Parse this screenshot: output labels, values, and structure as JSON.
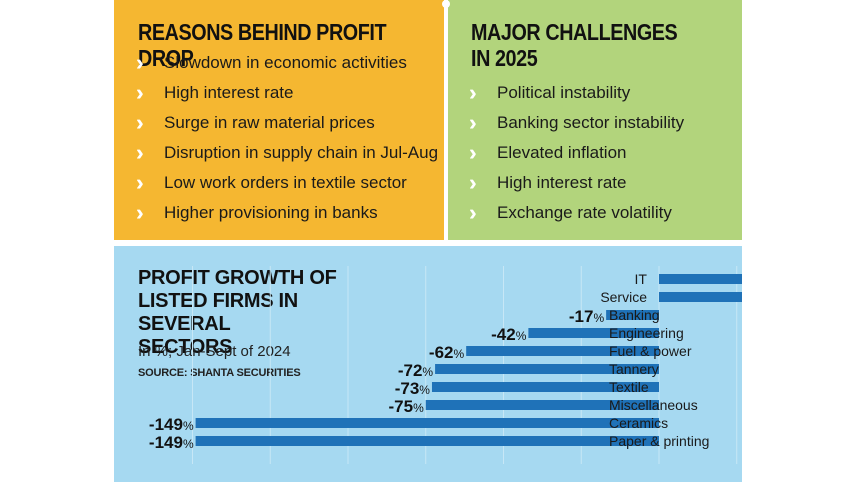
{
  "reasons": {
    "title": "REASONS BEHIND PROFIT DROP",
    "items": [
      "Slowdown in economic activities",
      "High interest rate",
      "Surge in raw material prices",
      "Disruption in supply chain in Jul-Aug",
      "Low work orders in textile sector",
      "Higher provisioning in banks"
    ]
  },
  "challenges": {
    "title_line1": "MAJOR CHALLENGES",
    "title_line2": "IN 2025",
    "items": [
      "Political instability",
      "Banking sector instability",
      "Elevated inflation",
      "High interest rate",
      "Exchange rate volatility"
    ]
  },
  "colors": {
    "reasons_bg": "#f5b731",
    "challenges_bg": "#b2d47c",
    "chart_bg": "#a6d9f1",
    "bar": "#1f72b8",
    "bullet": "#ffffff"
  },
  "chart": {
    "title_line1": "PROFIT GROWTH OF",
    "title_line2": "LISTED FIRMS IN SEVERAL",
    "title_line3": "SECTORS",
    "subtitle": "In %; Jan-Sept of 2024",
    "source_label": "SOURCE:",
    "source_name": "SHANTA SECURITIES"
  },
  "chart_data": {
    "type": "bar",
    "orientation": "horizontal",
    "unit": "%",
    "categories": [
      "IT",
      "Service",
      "Banking",
      "Engineering",
      "Fuel & power",
      "Tannery",
      "Textile",
      "Miscellaneous",
      "Ceramics",
      "Paper & printing"
    ],
    "values": [
      29,
      38,
      -17,
      -42,
      -62,
      -72,
      -73,
      -75,
      -149,
      -149
    ],
    "xlim": [
      -150,
      40
    ],
    "grid": true
  }
}
